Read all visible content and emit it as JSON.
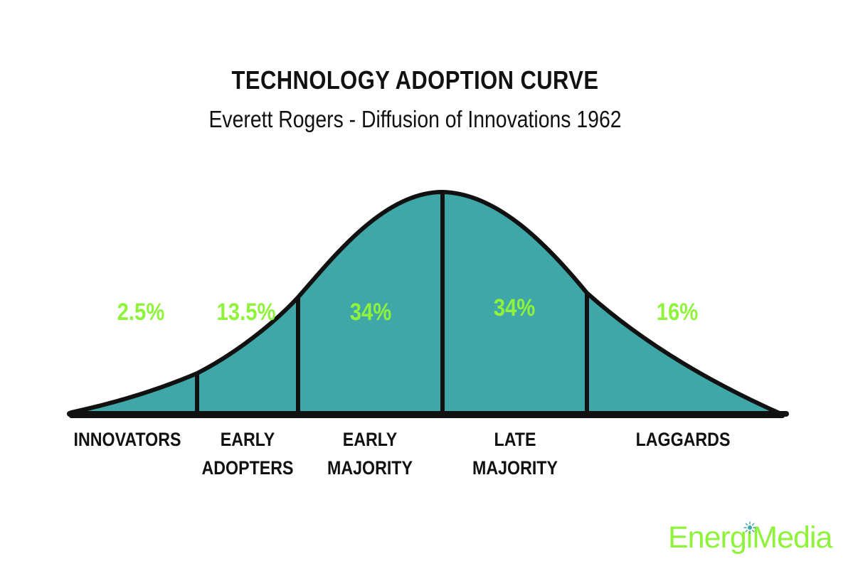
{
  "header": {
    "title": "TECHNOLOGY ADOPTION CURVE",
    "subtitle": "Everett Rogers - Diffusion of Innovations 1962"
  },
  "segments": [
    {
      "percent": "2.5%",
      "label_lines": [
        "INNOVATORS"
      ]
    },
    {
      "percent": "13.5%",
      "label_lines": [
        "EARLY",
        "ADOPTERS"
      ]
    },
    {
      "percent": "34%",
      "label_lines": [
        "EARLY",
        "MAJORITY"
      ]
    },
    {
      "percent": "34%",
      "label_lines": [
        "LATE",
        "MAJORITY"
      ]
    },
    {
      "percent": "16%",
      "label_lines": [
        "LAGGARDS"
      ]
    }
  ],
  "brand": {
    "text": "EnergiMedia"
  },
  "colors": {
    "fill": "#3fa7a7",
    "outline": "#111111",
    "accent_green": "#8ef33a"
  }
}
